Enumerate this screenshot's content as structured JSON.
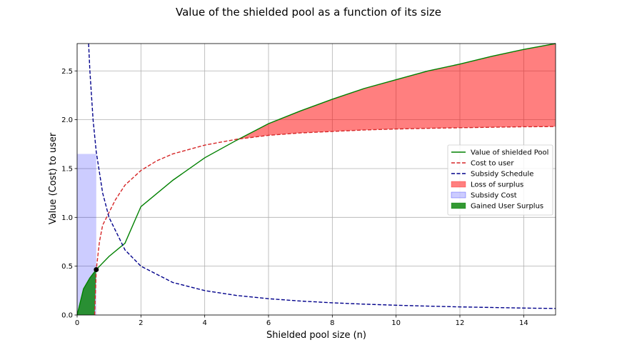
{
  "chart_data": {
    "type": "line",
    "title": "Value of the shielded pool as a function of its size",
    "xlabel": "Shielded pool size (n)",
    "ylabel": "Value (Cost) to user",
    "xlim": [
      0,
      15
    ],
    "ylim": [
      0,
      2.78
    ],
    "xticks": [
      "0",
      "2",
      "4",
      "6",
      "8",
      "10",
      "12",
      "14"
    ],
    "yticks": [
      "0.0",
      "0.5",
      "1.0",
      "1.5",
      "2.0",
      "2.5"
    ],
    "grid": true,
    "legend_position": "center-right",
    "series": [
      {
        "name": "Value of shielded Pool",
        "style": "solid",
        "color": "#008000",
        "x": [
          0,
          0.2,
          0.4,
          0.6,
          1,
          1.5,
          2,
          3,
          4,
          5,
          6,
          7,
          8,
          9,
          10,
          11,
          12,
          13,
          14,
          15
        ],
        "y": [
          0,
          0.268,
          0.38,
          0.465,
          0.6,
          0.735,
          1.11,
          1.38,
          1.61,
          1.79,
          1.96,
          2.09,
          2.21,
          2.32,
          2.41,
          2.5,
          2.57,
          2.65,
          2.72,
          2.78
        ]
      },
      {
        "name": "Cost to user",
        "style": "dashed",
        "color": "#d62728",
        "x": [
          0.55,
          0.6,
          0.7,
          0.8,
          1,
          1.2,
          1.5,
          2,
          2.5,
          3,
          4,
          5,
          6,
          7,
          8,
          9,
          10,
          11,
          12,
          13,
          14,
          15
        ],
        "y": [
          0,
          0.465,
          0.75,
          0.92,
          1.05,
          1.18,
          1.33,
          1.48,
          1.58,
          1.65,
          1.74,
          1.8,
          1.84,
          1.865,
          1.88,
          1.895,
          1.905,
          1.912,
          1.918,
          1.923,
          1.928,
          1.93
        ]
      },
      {
        "name": "Subsidy Schedule",
        "style": "dashed",
        "color": "#00008b",
        "x": [
          0.36,
          0.4,
          0.5,
          0.6,
          0.8,
          1,
          1.5,
          2,
          3,
          4,
          5,
          6,
          7,
          8,
          9,
          10,
          11,
          12,
          13,
          14,
          15
        ],
        "y": [
          2.78,
          2.5,
          2.0,
          1.67,
          1.25,
          1.0,
          0.667,
          0.5,
          0.333,
          0.25,
          0.2,
          0.167,
          0.143,
          0.125,
          0.111,
          0.1,
          0.091,
          0.083,
          0.077,
          0.071,
          0.067
        ]
      }
    ],
    "areas": [
      {
        "name": "Loss of surplus",
        "color": "#ff0000",
        "alpha": 0.5,
        "x_from": 5.0,
        "x_to": 15,
        "between": [
          "Cost to user",
          "Value of shielded Pool"
        ]
      },
      {
        "name": "Subsidy Cost",
        "color": "#0000ff",
        "alpha": 0.2,
        "x_from": 0,
        "x_to": 0.6,
        "y_from": 0,
        "y_to": 1.65
      },
      {
        "name": "Gained User Surplus",
        "color": "#008000",
        "alpha": 0.8,
        "x_from": 0,
        "x_to": 0.6,
        "between": [
          "Cost to user",
          "Value of shielded Pool"
        ]
      }
    ],
    "annotations": [
      {
        "type": "point",
        "x": 0.6,
        "y": 0.465,
        "color": "#000000"
      }
    ]
  }
}
